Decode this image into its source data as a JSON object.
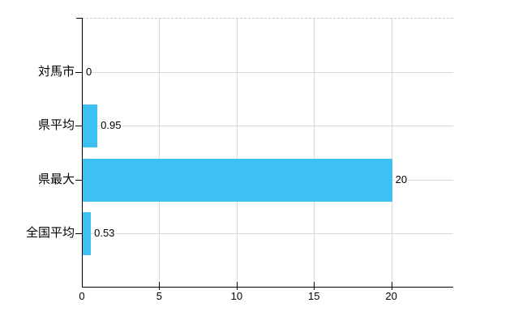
{
  "chart_data": {
    "type": "bar",
    "orientation": "horizontal",
    "title": "",
    "categories": [
      "対馬市",
      "県平均",
      "県最大",
      "全国平均"
    ],
    "values": [
      0,
      0.95,
      20,
      0.53
    ],
    "value_labels": [
      "0",
      "0.95",
      "20",
      "0.53"
    ],
    "x_ticks": [
      0,
      5,
      10,
      15,
      20
    ],
    "x_tick_labels": [
      "0",
      "5",
      "10",
      "15",
      "20"
    ],
    "xlim": [
      0,
      24
    ],
    "grid": true,
    "legend_position": "none",
    "bar_color": "#3EC0F2"
  },
  "colors": {
    "bar": "#3EC0F2",
    "grid": "#D9D9D9",
    "axis": "#000000",
    "text": "#000000",
    "top_border_dashed": "#C9C9C9",
    "background": "#FFFFFF"
  }
}
